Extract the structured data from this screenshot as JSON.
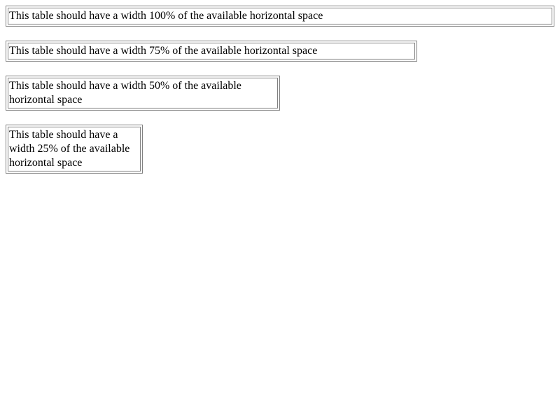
{
  "tables": [
    {
      "text": "This table should have a width 100% of the available horizontal space"
    },
    {
      "text": "This table should have a width 75% of the available horizontal space"
    },
    {
      "text": "This table should have a width 50% of the available horizontal space"
    },
    {
      "text": "This table should have a width 25% of the available horizontal space"
    }
  ]
}
